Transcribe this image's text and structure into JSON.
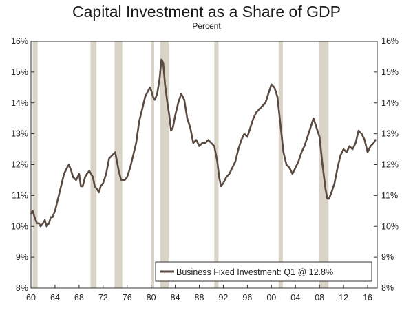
{
  "chart_data": {
    "type": "line",
    "title": "Capital Investment as a Share of GDP",
    "subtitle": "Percent",
    "xlabel": "",
    "ylabel": "",
    "xlim": [
      1960,
      2017.6
    ],
    "ylim": [
      8,
      16
    ],
    "y_ticks": [
      {
        "value": 8,
        "label": "8%"
      },
      {
        "value": 9,
        "label": "9%"
      },
      {
        "value": 10,
        "label": "10%"
      },
      {
        "value": 11,
        "label": "11%"
      },
      {
        "value": 12,
        "label": "12%"
      },
      {
        "value": 13,
        "label": "13%"
      },
      {
        "value": 14,
        "label": "14%"
      },
      {
        "value": 15,
        "label": "15%"
      },
      {
        "value": 16,
        "label": "16%"
      }
    ],
    "x_ticks": [
      {
        "value": 1960,
        "label": "60"
      },
      {
        "value": 1964,
        "label": "64"
      },
      {
        "value": 1968,
        "label": "68"
      },
      {
        "value": 1972,
        "label": "72"
      },
      {
        "value": 1976,
        "label": "76"
      },
      {
        "value": 1980,
        "label": "80"
      },
      {
        "value": 1984,
        "label": "84"
      },
      {
        "value": 1988,
        "label": "88"
      },
      {
        "value": 1992,
        "label": "92"
      },
      {
        "value": 1996,
        "label": "96"
      },
      {
        "value": 2000,
        "label": "00"
      },
      {
        "value": 2004,
        "label": "04"
      },
      {
        "value": 2008,
        "label": "08"
      },
      {
        "value": 2012,
        "label": "12"
      },
      {
        "value": 2016,
        "label": "16"
      }
    ],
    "recessions": [
      [
        1960.3,
        1961.1
      ],
      [
        1969.9,
        1970.9
      ],
      [
        1973.9,
        1975.2
      ],
      [
        1980.0,
        1980.5
      ],
      [
        1981.5,
        1982.9
      ],
      [
        1990.5,
        1991.2
      ],
      [
        2001.2,
        2001.9
      ],
      [
        2007.9,
        2009.5
      ]
    ],
    "series": [
      {
        "name": "Business Fixed Investment: Q1 @ 12.8%",
        "color": "#5a4a42",
        "x": [
          1960.0,
          1960.3,
          1960.6,
          1961.0,
          1961.3,
          1961.6,
          1962.0,
          1962.3,
          1962.6,
          1963.0,
          1963.3,
          1963.6,
          1964.0,
          1964.5,
          1965.0,
          1965.5,
          1966.0,
          1966.3,
          1966.7,
          1967.0,
          1967.5,
          1968.0,
          1968.3,
          1968.6,
          1969.0,
          1969.3,
          1969.7,
          1970.0,
          1970.3,
          1970.6,
          1971.0,
          1971.3,
          1971.6,
          1972.0,
          1972.5,
          1973.0,
          1973.5,
          1974.0,
          1974.3,
          1974.6,
          1975.0,
          1975.3,
          1975.6,
          1976.0,
          1976.5,
          1977.0,
          1977.5,
          1978.0,
          1978.5,
          1979.0,
          1979.5,
          1979.8,
          1980.0,
          1980.3,
          1980.6,
          1981.0,
          1981.4,
          1981.7,
          1982.0,
          1982.3,
          1982.7,
          1983.0,
          1983.3,
          1983.6,
          1984.0,
          1984.5,
          1985.0,
          1985.5,
          1986.0,
          1986.5,
          1987.0,
          1987.5,
          1988.0,
          1988.5,
          1989.0,
          1989.5,
          1990.0,
          1990.5,
          1991.0,
          1991.3,
          1991.6,
          1992.0,
          1992.5,
          1993.0,
          1993.5,
          1994.0,
          1994.5,
          1995.0,
          1995.5,
          1996.0,
          1996.5,
          1997.0,
          1997.5,
          1998.0,
          1998.5,
          1999.0,
          1999.5,
          2000.0,
          2000.5,
          2001.0,
          2001.5,
          2002.0,
          2002.5,
          2003.0,
          2003.5,
          2004.0,
          2004.5,
          2005.0,
          2005.5,
          2006.0,
          2006.5,
          2007.0,
          2007.5,
          2008.0,
          2008.5,
          2009.0,
          2009.3,
          2009.6,
          2010.0,
          2010.5,
          2011.0,
          2011.5,
          2012.0,
          2012.5,
          2013.0,
          2013.5,
          2014.0,
          2014.5,
          2015.0,
          2015.5,
          2016.0,
          2016.5,
          2017.0,
          2017.3
        ],
        "values": [
          10.4,
          10.5,
          10.3,
          10.1,
          10.1,
          10.0,
          10.1,
          10.2,
          10.0,
          10.1,
          10.3,
          10.3,
          10.5,
          10.9,
          11.3,
          11.7,
          11.9,
          12.0,
          11.8,
          11.6,
          11.5,
          11.7,
          11.3,
          11.3,
          11.6,
          11.7,
          11.8,
          11.7,
          11.6,
          11.3,
          11.2,
          11.1,
          11.3,
          11.4,
          11.7,
          12.2,
          12.3,
          12.4,
          12.1,
          11.8,
          11.5,
          11.5,
          11.5,
          11.6,
          11.9,
          12.3,
          12.7,
          13.4,
          13.8,
          14.2,
          14.4,
          14.5,
          14.4,
          14.2,
          14.1,
          14.3,
          14.8,
          15.4,
          15.3,
          14.6,
          14.0,
          13.6,
          13.1,
          13.2,
          13.6,
          14.0,
          14.3,
          14.1,
          13.5,
          13.2,
          12.7,
          12.8,
          12.6,
          12.7,
          12.7,
          12.8,
          12.7,
          12.6,
          12.1,
          11.6,
          11.3,
          11.4,
          11.6,
          11.7,
          11.9,
          12.1,
          12.5,
          12.8,
          13.0,
          12.9,
          13.2,
          13.5,
          13.7,
          13.8,
          13.9,
          14.0,
          14.3,
          14.6,
          14.5,
          14.2,
          13.3,
          12.4,
          12.0,
          11.9,
          11.7,
          11.9,
          12.1,
          12.4,
          12.6,
          12.9,
          13.2,
          13.5,
          13.2,
          12.9,
          12.0,
          11.2,
          10.9,
          10.9,
          11.1,
          11.4,
          11.9,
          12.3,
          12.5,
          12.4,
          12.6,
          12.5,
          12.7,
          13.1,
          13.0,
          12.8,
          12.4,
          12.6,
          12.7,
          12.8
        ]
      }
    ],
    "legend": {
      "position": "bottom-right",
      "label": "Business Fixed Investment: Q1 @ 12.8%"
    }
  }
}
